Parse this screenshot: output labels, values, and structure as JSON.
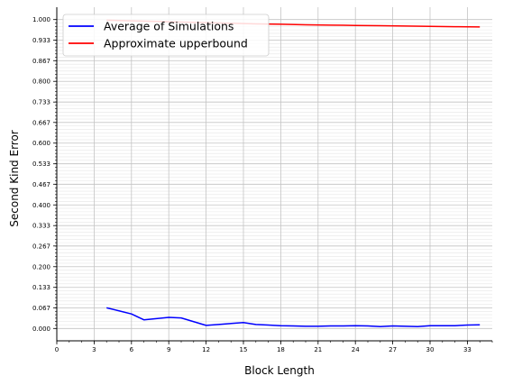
{
  "chart_data": {
    "type": "line",
    "title": "",
    "xlabel": "Block Length",
    "ylabel": "Second Kind Error",
    "xlim": [
      0,
      35
    ],
    "ylim": [
      -0.04,
      1.04
    ],
    "x_ticks": [
      0,
      3,
      6,
      9,
      12,
      15,
      18,
      21,
      24,
      27,
      30,
      33
    ],
    "x_tick_labels": [
      "0",
      "3",
      "6",
      "9",
      "12",
      "15",
      "18",
      "21",
      "24",
      "27",
      "30",
      "33"
    ],
    "y_ticks": [
      0.0,
      0.067,
      0.133,
      0.2,
      0.267,
      0.333,
      0.4,
      0.467,
      0.533,
      0.6,
      0.667,
      0.733,
      0.8,
      0.867,
      0.933,
      1.0
    ],
    "y_tick_labels": [
      "0.000",
      "0.067",
      "0.133",
      "0.200",
      "0.267",
      "0.333",
      "0.400",
      "0.467",
      "0.533",
      "0.600",
      "0.667",
      "0.733",
      "0.800",
      "0.867",
      "0.933",
      "1.000"
    ],
    "grid": true,
    "legend_position": "top-left",
    "series": [
      {
        "name": "Average of Simulations",
        "color": "#0000ff",
        "x": [
          4,
          5,
          6,
          7,
          8,
          9,
          10,
          11,
          12,
          13,
          14,
          15,
          16,
          17,
          18,
          19,
          20,
          21,
          22,
          23,
          24,
          25,
          26,
          27,
          28,
          29,
          30,
          31,
          32,
          33,
          34
        ],
        "y": [
          0.067,
          0.057,
          0.047,
          0.028,
          0.032,
          0.036,
          0.034,
          0.022,
          0.01,
          0.013,
          0.016,
          0.019,
          0.013,
          0.011,
          0.009,
          0.008,
          0.007,
          0.007,
          0.008,
          0.008,
          0.009,
          0.008,
          0.006,
          0.008,
          0.007,
          0.006,
          0.009,
          0.009,
          0.009,
          0.011,
          0.012
        ]
      },
      {
        "name": "Approximate upperbound",
        "color": "#ff0000",
        "x": [
          4,
          6,
          8,
          10,
          12,
          14,
          16,
          18,
          20,
          22,
          24,
          26,
          28,
          30,
          32,
          34
        ],
        "y": [
          0.998,
          0.996,
          0.994,
          0.992,
          0.99,
          0.988,
          0.986,
          0.985,
          0.983,
          0.982,
          0.981,
          0.98,
          0.979,
          0.978,
          0.977,
          0.976
        ]
      }
    ]
  }
}
